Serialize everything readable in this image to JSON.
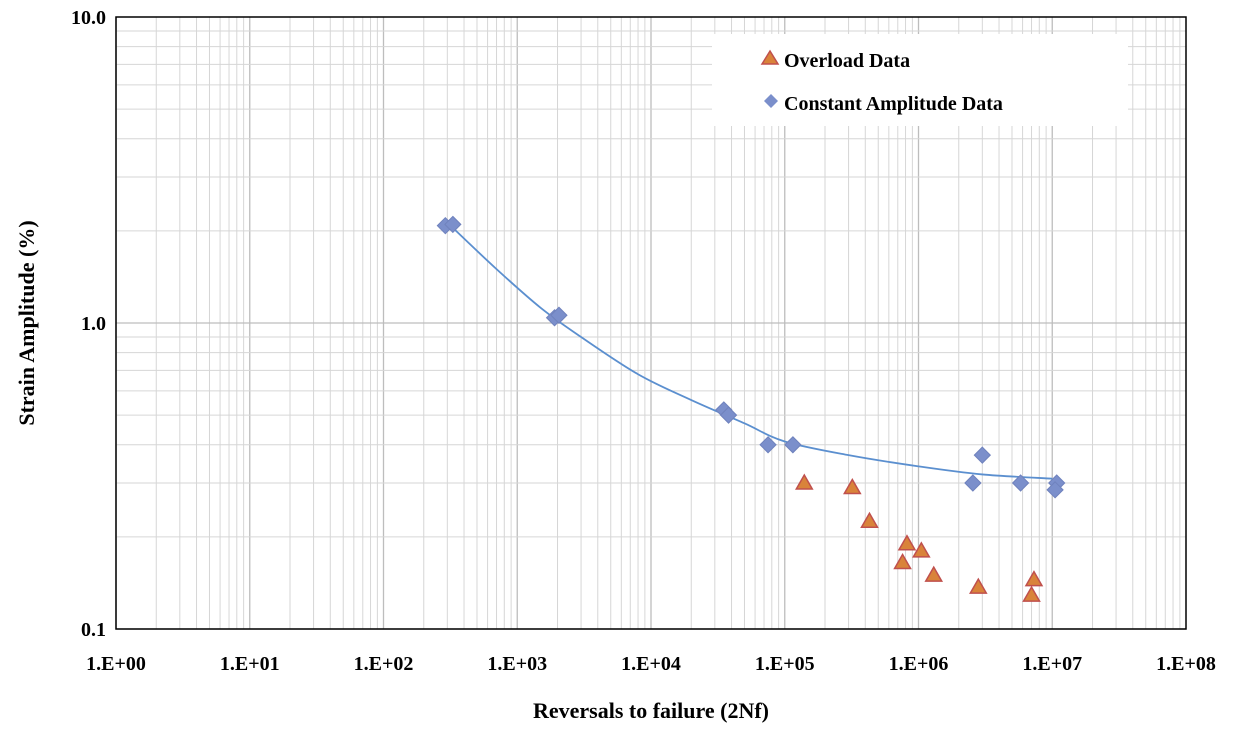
{
  "chart_data": {
    "type": "scatter",
    "title": "",
    "xlabel": "Reversals to failure (2Nf)",
    "ylabel": "Strain Amplitude (%)",
    "x_scale": "log",
    "y_scale": "log",
    "xlim": [
      1,
      100000000
    ],
    "ylim": [
      0.1,
      10
    ],
    "x_ticks": [
      1,
      10,
      100,
      1000,
      10000,
      100000,
      1000000,
      10000000,
      100000000
    ],
    "x_tick_labels": [
      "1.E+00",
      "1.E+01",
      "1.E+02",
      "1.E+03",
      "1.E+04",
      "1.E+05",
      "1.E+06",
      "1.E+07",
      "1.E+08"
    ],
    "y_ticks": [
      0.1,
      1,
      10
    ],
    "y_tick_labels": [
      "0.1",
      "1.0",
      "10.0"
    ],
    "grid": true,
    "legend_position": "top-right",
    "series": [
      {
        "name": "Overload Data",
        "marker": "triangle",
        "color": "#C0504D",
        "fill": "#D9833A",
        "points": [
          [
            140000,
            0.3
          ],
          [
            320000,
            0.29
          ],
          [
            430000,
            0.225
          ],
          [
            820000,
            0.19
          ],
          [
            1050000,
            0.18
          ],
          [
            760000,
            0.165
          ],
          [
            1300000,
            0.15
          ],
          [
            2800000,
            0.137
          ],
          [
            7300000,
            0.145
          ],
          [
            7000000,
            0.129
          ]
        ]
      },
      {
        "name": "Constant Amplitude Data",
        "marker": "diamond",
        "color": "#7B8FCB",
        "points": [
          [
            290,
            2.08
          ],
          [
            330,
            2.1
          ],
          [
            1900,
            1.04
          ],
          [
            2050,
            1.06
          ],
          [
            35000,
            0.52
          ],
          [
            38000,
            0.5
          ],
          [
            75000,
            0.4
          ],
          [
            115000,
            0.4
          ],
          [
            2550000,
            0.3
          ],
          [
            3000000,
            0.37
          ],
          [
            5800000,
            0.3
          ],
          [
            10800000,
            0.3
          ],
          [
            10500000,
            0.285
          ]
        ]
      }
    ],
    "trendline": {
      "color": "#5B8FCF",
      "points": [
        [
          310,
          2.1
        ],
        [
          700,
          1.5
        ],
        [
          1500,
          1.12
        ],
        [
          3000,
          0.9
        ],
        [
          8000,
          0.68
        ],
        [
          20000,
          0.56
        ],
        [
          50000,
          0.47
        ],
        [
          100000,
          0.41
        ],
        [
          300000,
          0.37
        ],
        [
          1000000,
          0.34
        ],
        [
          3000000,
          0.32
        ],
        [
          10000000,
          0.31
        ]
      ]
    }
  }
}
